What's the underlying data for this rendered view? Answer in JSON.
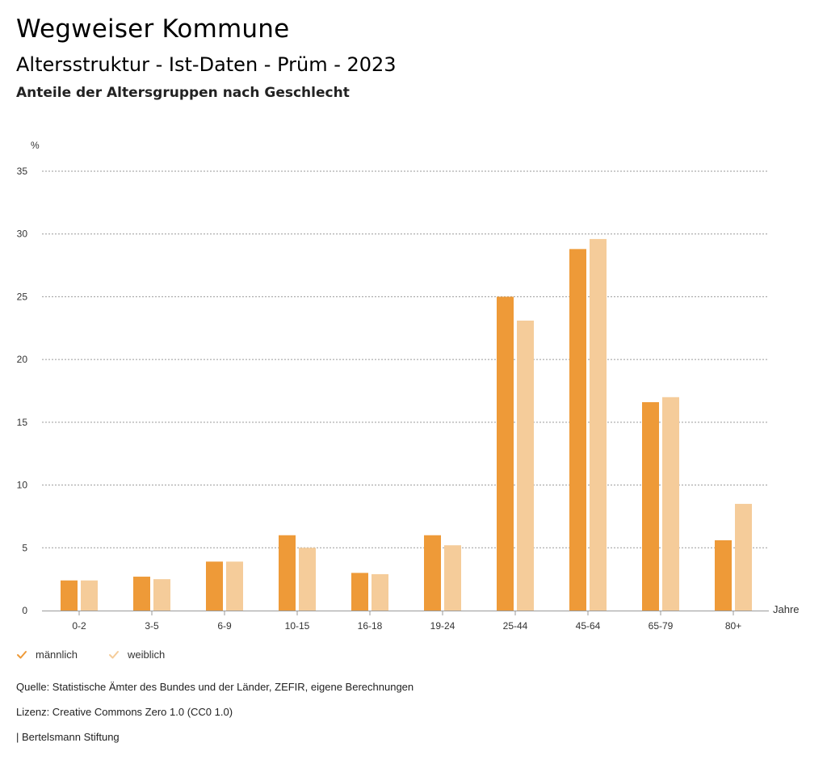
{
  "header": {
    "title": "Wegweiser Kommune",
    "subtitle": "Altersstruktur - Ist-Daten - Prüm - 2023",
    "subsubtitle": "Anteile der Altersgruppen nach Geschlecht"
  },
  "chart_data": {
    "type": "bar",
    "categories": [
      "0-2",
      "3-5",
      "6-9",
      "10-15",
      "16-18",
      "19-24",
      "25-44",
      "45-64",
      "65-79",
      "80+"
    ],
    "series": [
      {
        "name": "männlich",
        "color": "#ee9a38",
        "values": [
          2.4,
          2.7,
          3.9,
          6.0,
          3.0,
          6.0,
          25.0,
          28.8,
          16.6,
          5.6
        ]
      },
      {
        "name": "weiblich",
        "color": "#f5cc9a",
        "values": [
          2.4,
          2.5,
          3.9,
          5.0,
          2.9,
          5.2,
          23.1,
          29.6,
          17.0,
          8.5
        ]
      }
    ],
    "ylabel": "%",
    "xlabel": "Jahre",
    "ylim": [
      0,
      35
    ],
    "yticks": [
      0,
      5,
      10,
      15,
      20,
      25,
      30,
      35
    ],
    "grid": true,
    "legend_position": "bottom-left"
  },
  "footer": {
    "source": "Quelle: Statistische Ämter des Bundes und der Länder, ZEFIR, eigene Berechnungen",
    "license": "Lizenz: Creative Commons Zero 1.0 (CC0 1.0)",
    "publisher": "| Bertelsmann Stiftung"
  }
}
